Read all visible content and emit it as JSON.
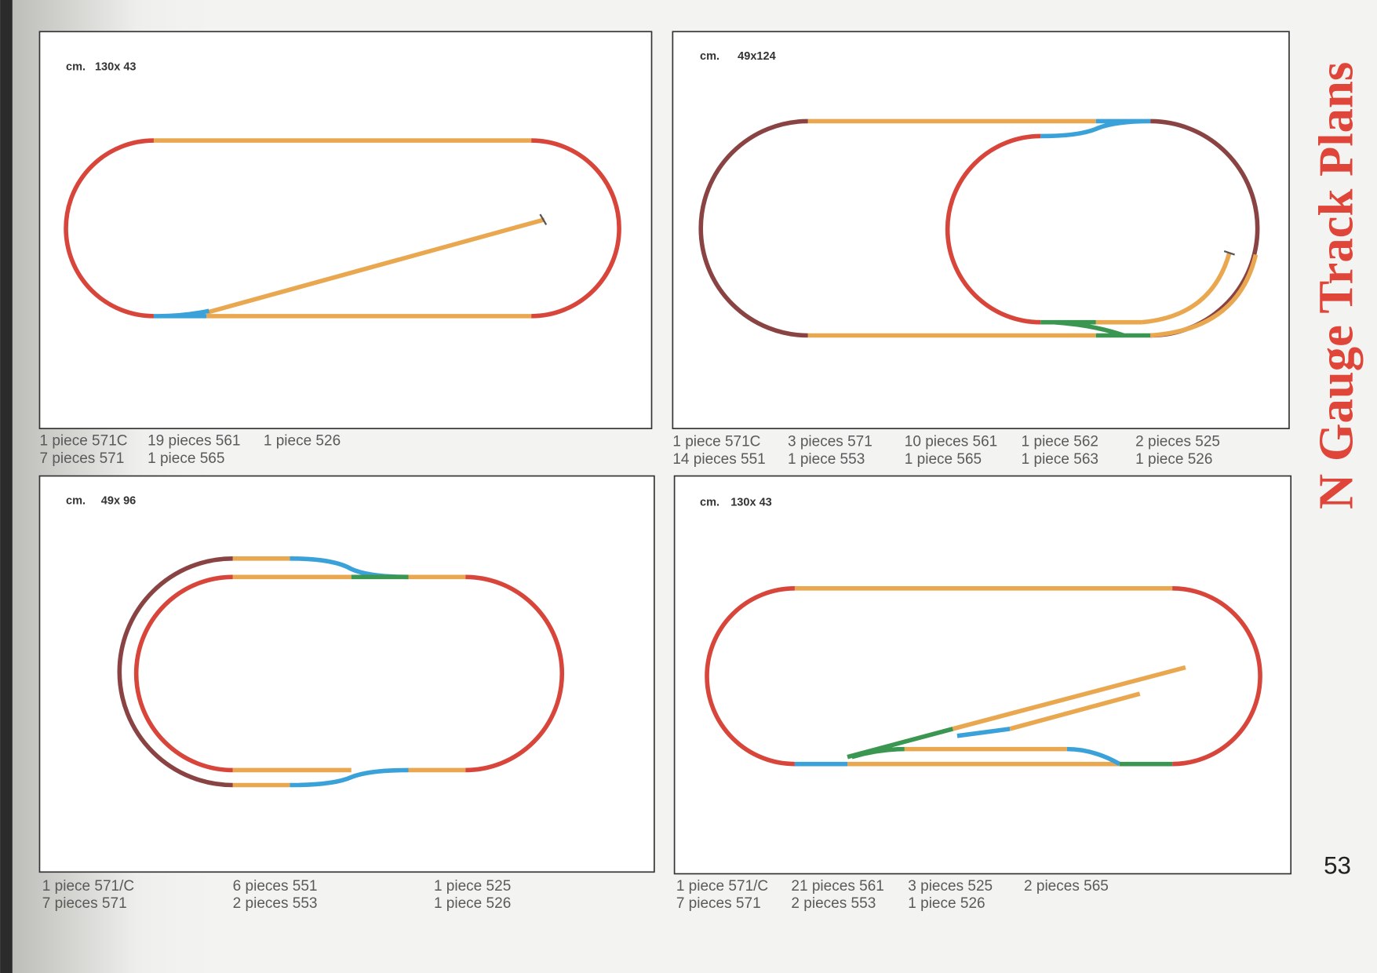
{
  "title": "N Gauge Track Plans",
  "page_number": "53",
  "plans": [
    {
      "unit": "cm.",
      "size": "130x 43",
      "parts": [
        [
          "1 piece 571C",
          "7 pieces 571"
        ],
        [
          "19 pieces 561",
          "1 piece 565"
        ],
        [
          "1 piece 526"
        ]
      ]
    },
    {
      "unit": "cm.",
      "size": "49x124",
      "parts": [
        [
          "1 piece 571C",
          "14 pieces 551"
        ],
        [
          "3 pieces 571",
          "1 piece 553"
        ],
        [
          "10 pieces 561",
          "1 piece 565"
        ],
        [
          "1 piece 562",
          "1 piece 563"
        ],
        [
          "2 pieces 525",
          "1 piece 526"
        ]
      ]
    },
    {
      "unit": "cm.",
      "size": "49x 96",
      "parts": [
        [
          "1 piece 571/C",
          "7 pieces 571"
        ],
        [
          "6 pieces 551",
          "2 pieces 553"
        ],
        [
          "1 piece 525",
          "1 piece 526"
        ]
      ]
    },
    {
      "unit": "cm.",
      "size": "130x 43",
      "parts": [
        [
          "1 piece 571/C",
          "7 pieces 571"
        ],
        [
          "21 pieces 561",
          "2 pieces 553"
        ],
        [
          "3 pieces 525",
          "1 piece 526"
        ],
        [
          "2 pieces 565"
        ]
      ]
    }
  ]
}
